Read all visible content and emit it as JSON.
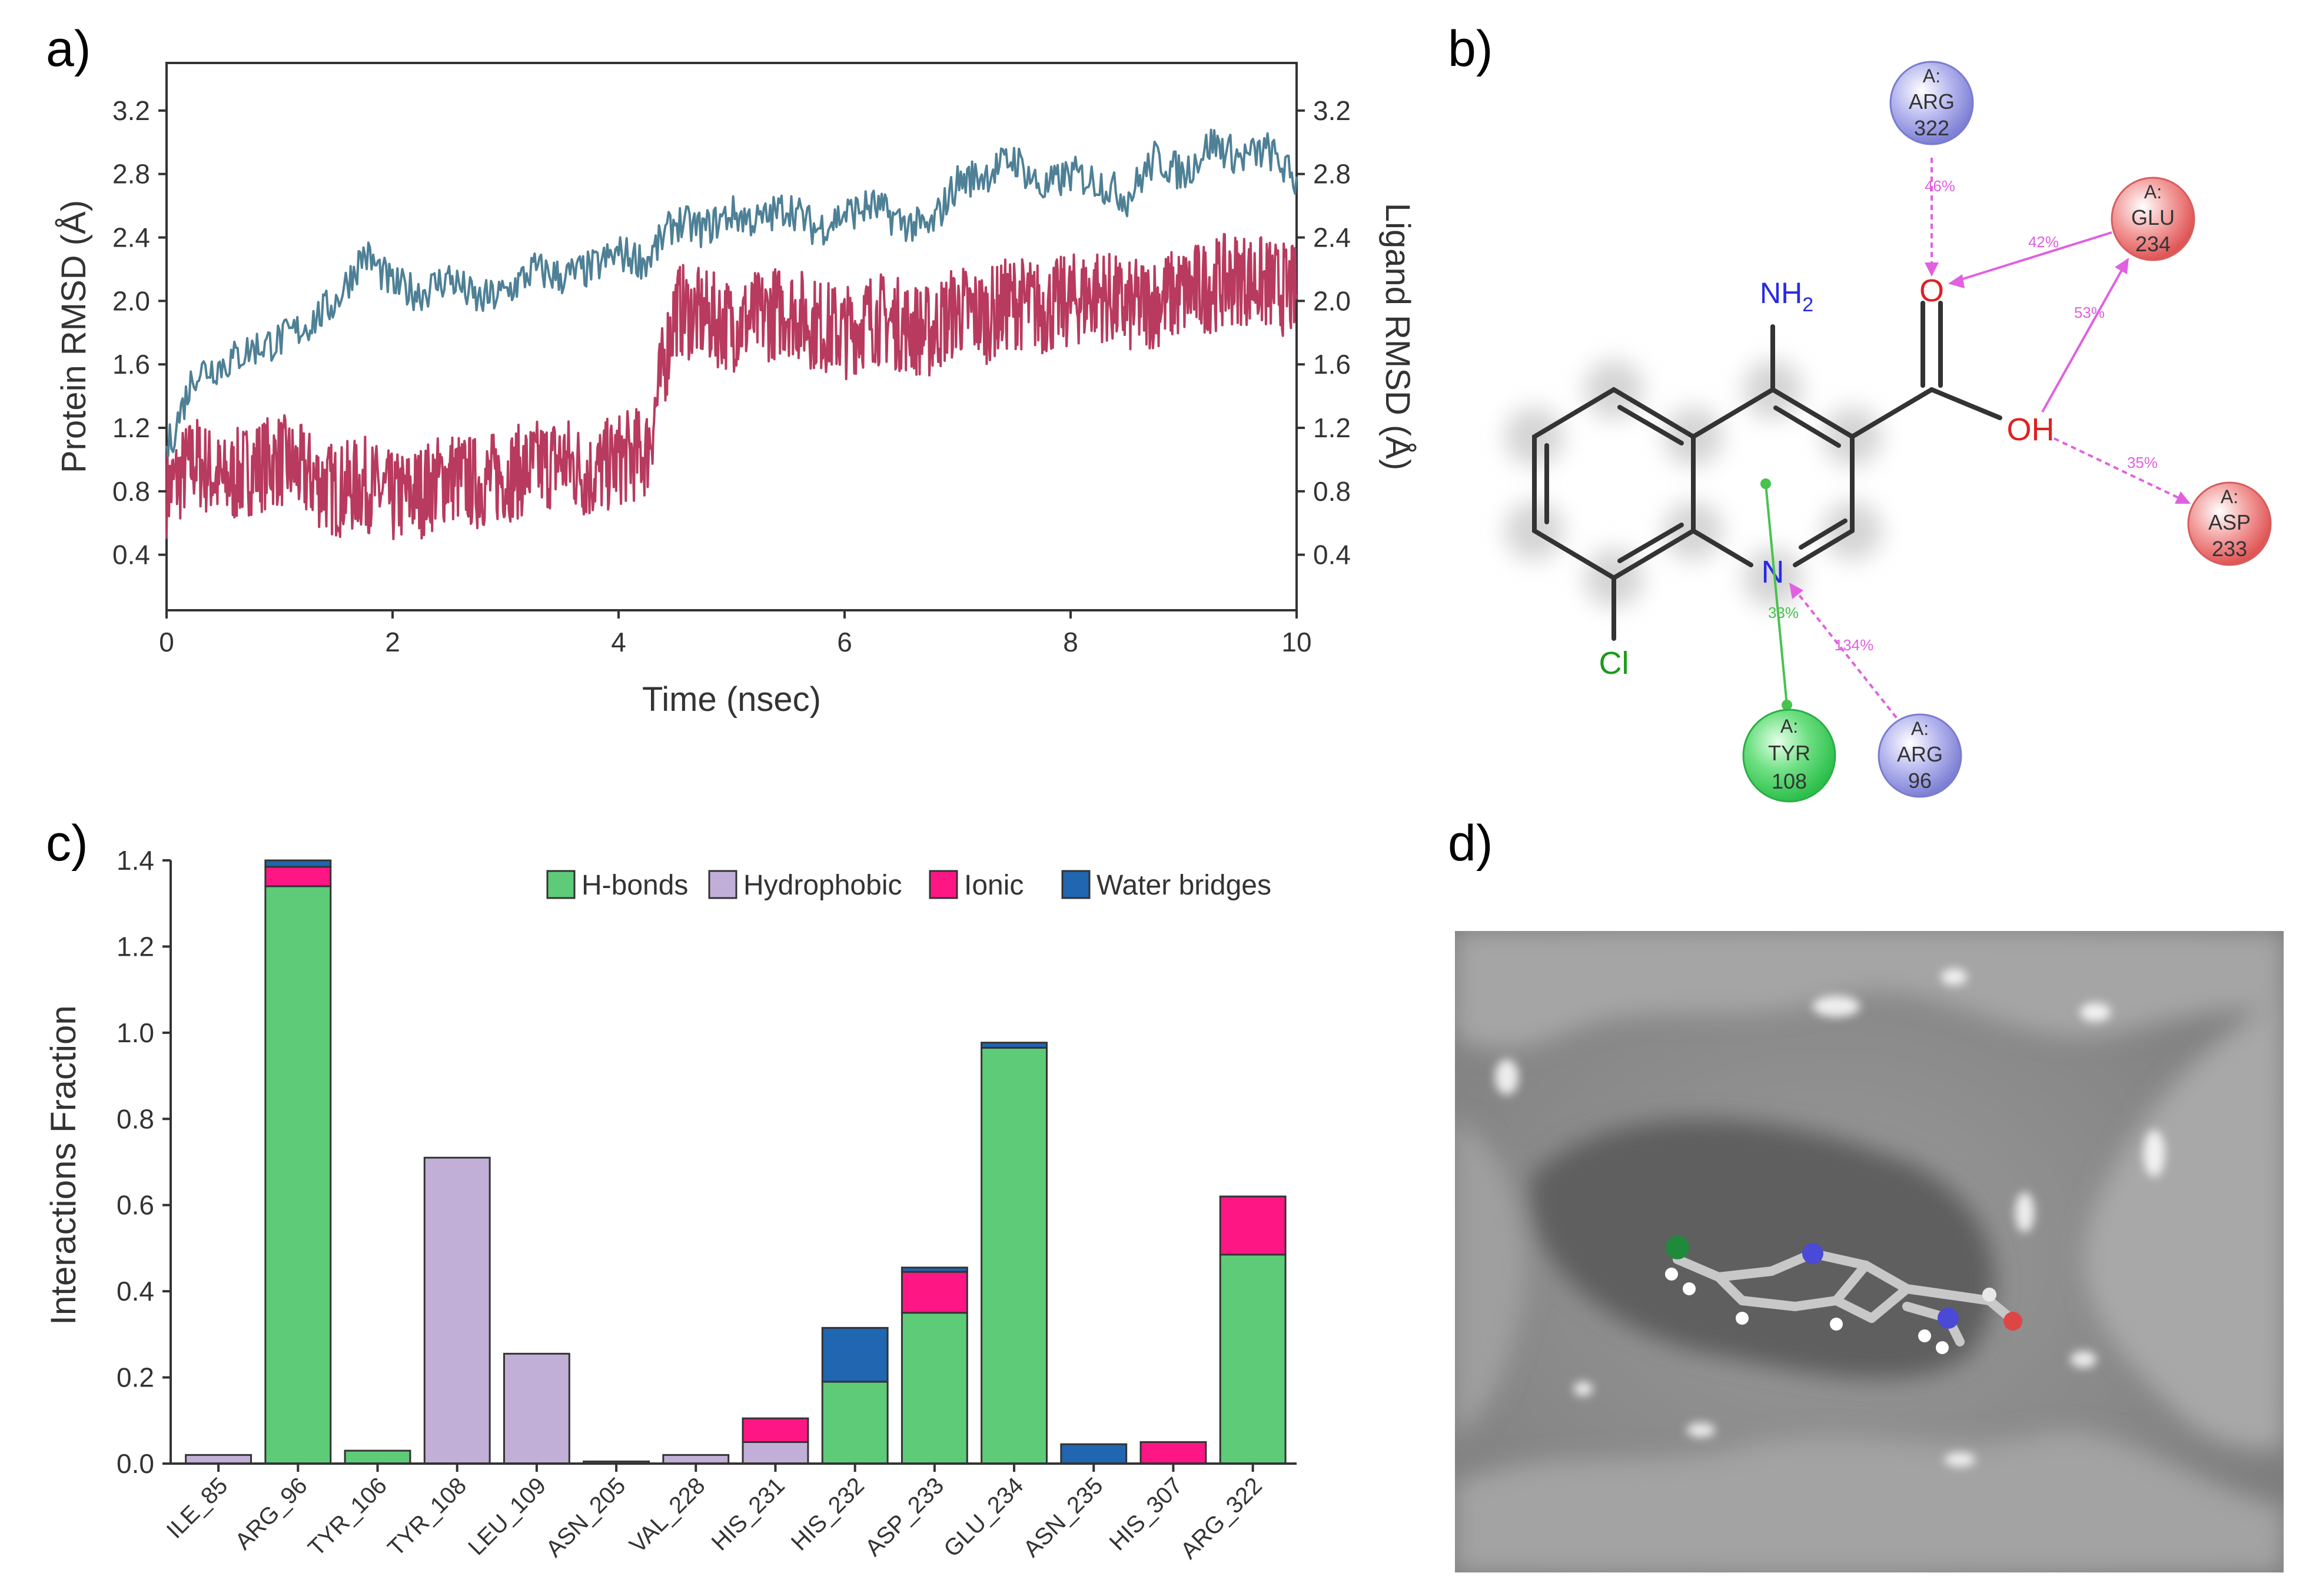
{
  "panels": {
    "a": "a)",
    "b": "b)",
    "c": "c)",
    "d": "d)"
  },
  "colors": {
    "protein": "#4e8096",
    "ligand": "#b83a5e",
    "hbond": "#5ecb78",
    "hydrophobic": "#c2afd8",
    "ionic": "#ff1685",
    "water": "#2066b0",
    "arg_node": "#8e8fdc",
    "glu_node": "#e86e6e",
    "tyr_node": "#3fd060",
    "hbond_edge": "#e455e4",
    "pi_edge": "#47c24f",
    "surface": "#8c8c8c"
  },
  "chart_data": [
    {
      "type": "line",
      "title": "",
      "xlabel": "Time (nsec)",
      "ylabel": "Protein RMSD (Å)",
      "ylabel_right": "Ligand RMSD (Å)",
      "xlim": [
        0,
        10
      ],
      "ylim": [
        0.05,
        3.5
      ],
      "xticks": [
        "0",
        "2",
        "4",
        "6",
        "8",
        "10"
      ],
      "yticks": [
        "0.4",
        "0.8",
        "1.2",
        "1.6",
        "2.0",
        "2.4",
        "2.8",
        "3.2"
      ],
      "series": [
        {
          "name": "Protein RMSD",
          "x": [
            0,
            0.25,
            0.5,
            0.75,
            1.0,
            1.25,
            1.5,
            1.75,
            2.0,
            2.25,
            2.5,
            2.75,
            3.0,
            3.25,
            3.5,
            3.75,
            4.0,
            4.25,
            4.5,
            4.75,
            5.0,
            5.25,
            5.5,
            5.75,
            6.0,
            6.25,
            6.5,
            6.75,
            7.0,
            7.25,
            7.5,
            7.75,
            8.0,
            8.25,
            8.5,
            8.75,
            9.0,
            9.25,
            9.5,
            9.75,
            10.0
          ],
          "values": [
            1.05,
            1.55,
            1.6,
            1.7,
            1.75,
            1.85,
            2.0,
            2.3,
            2.1,
            2.05,
            2.15,
            2.0,
            2.05,
            2.2,
            2.15,
            2.2,
            2.3,
            2.25,
            2.5,
            2.45,
            2.55,
            2.5,
            2.6,
            2.45,
            2.55,
            2.6,
            2.5,
            2.45,
            2.75,
            2.8,
            2.9,
            2.7,
            2.8,
            2.75,
            2.65,
            2.9,
            2.8,
            3.0,
            2.9,
            2.95,
            2.75
          ]
        },
        {
          "name": "Ligand RMSD",
          "x": [
            0,
            0.25,
            0.5,
            0.75,
            1.0,
            1.25,
            1.5,
            1.75,
            2.0,
            2.25,
            2.5,
            2.75,
            3.0,
            3.25,
            3.5,
            3.75,
            4.0,
            4.25,
            4.5,
            4.75,
            5.0,
            5.25,
            5.5,
            5.75,
            6.0,
            6.25,
            6.5,
            6.75,
            7.0,
            7.25,
            7.5,
            7.75,
            8.0,
            8.25,
            8.5,
            8.75,
            9.0,
            9.25,
            9.5,
            9.75,
            10.0
          ],
          "values": [
            0.8,
            1.0,
            0.85,
            0.95,
            1.0,
            0.9,
            0.8,
            0.85,
            0.75,
            0.8,
            0.9,
            0.85,
            0.9,
            0.95,
            1.0,
            0.9,
            1.0,
            1.05,
            1.95,
            1.9,
            1.85,
            1.9,
            1.95,
            1.85,
            1.8,
            1.9,
            1.85,
            1.8,
            1.95,
            1.9,
            2.0,
            1.95,
            2.0,
            2.05,
            1.95,
            2.0,
            2.05,
            2.1,
            2.15,
            2.1,
            2.05
          ]
        }
      ]
    },
    {
      "type": "bar",
      "title": "",
      "xlabel": "",
      "ylabel": "Interactions Fraction",
      "ylim": [
        0,
        1.4
      ],
      "yticks": [
        "0.0",
        "0.2",
        "0.4",
        "0.6",
        "0.8",
        "1.0",
        "1.2",
        "1.4"
      ],
      "categories": [
        "ILE_85",
        "ARG_96",
        "TYR_106",
        "TYR_108",
        "LEU_109",
        "ASN_205",
        "VAL_228",
        "HIS_231",
        "HIS_232",
        "ASP_233",
        "GLU_234",
        "ASN_235",
        "HIS_307",
        "ARG_322"
      ],
      "series": [
        {
          "name": "H-bonds",
          "values": [
            0,
            1.34,
            0.03,
            0,
            0,
            0,
            0,
            0,
            0.19,
            0.35,
            0.965,
            0,
            0,
            0.485
          ]
        },
        {
          "name": "Hydrophobic",
          "values": [
            0.02,
            0,
            0,
            0.71,
            0.255,
            0.005,
            0.02,
            0.05,
            0,
            0,
            0,
            0,
            0,
            0
          ]
        },
        {
          "name": "Ionic",
          "values": [
            0,
            0.045,
            0,
            0,
            0,
            0,
            0,
            0.055,
            0,
            0.095,
            0,
            0,
            0.05,
            0.135
          ]
        },
        {
          "name": "Water bridges",
          "values": [
            0,
            0.015,
            0,
            0,
            0,
            0,
            0,
            0,
            0.125,
            0.01,
            0.012,
            0.045,
            0,
            0
          ]
        }
      ]
    }
  ],
  "diagram": {
    "atoms": {
      "nh2": "NH",
      "nh2_sub": "2",
      "o": "O",
      "oh": "OH",
      "n": "N",
      "cl": "Cl"
    },
    "residues": [
      {
        "id": "arg322",
        "chain": "A:",
        "name": "ARG",
        "num": "322"
      },
      {
        "id": "glu234",
        "chain": "A:",
        "name": "GLU",
        "num": "234"
      },
      {
        "id": "asp233",
        "chain": "A:",
        "name": "ASP",
        "num": "233"
      },
      {
        "id": "tyr108",
        "chain": "A:",
        "name": "TYR",
        "num": "108"
      },
      {
        "id": "arg96",
        "chain": "A:",
        "name": "ARG",
        "num": "96"
      }
    ],
    "edges": [
      {
        "id": "arg322-o",
        "label": "46%"
      },
      {
        "id": "glu234-o",
        "label": "42%"
      },
      {
        "id": "oh-glu234",
        "label": "53%"
      },
      {
        "id": "oh-asp233",
        "label": "35%"
      },
      {
        "id": "tyr108-ring",
        "label": "33%"
      },
      {
        "id": "arg96-n",
        "label": "134%"
      }
    ]
  }
}
